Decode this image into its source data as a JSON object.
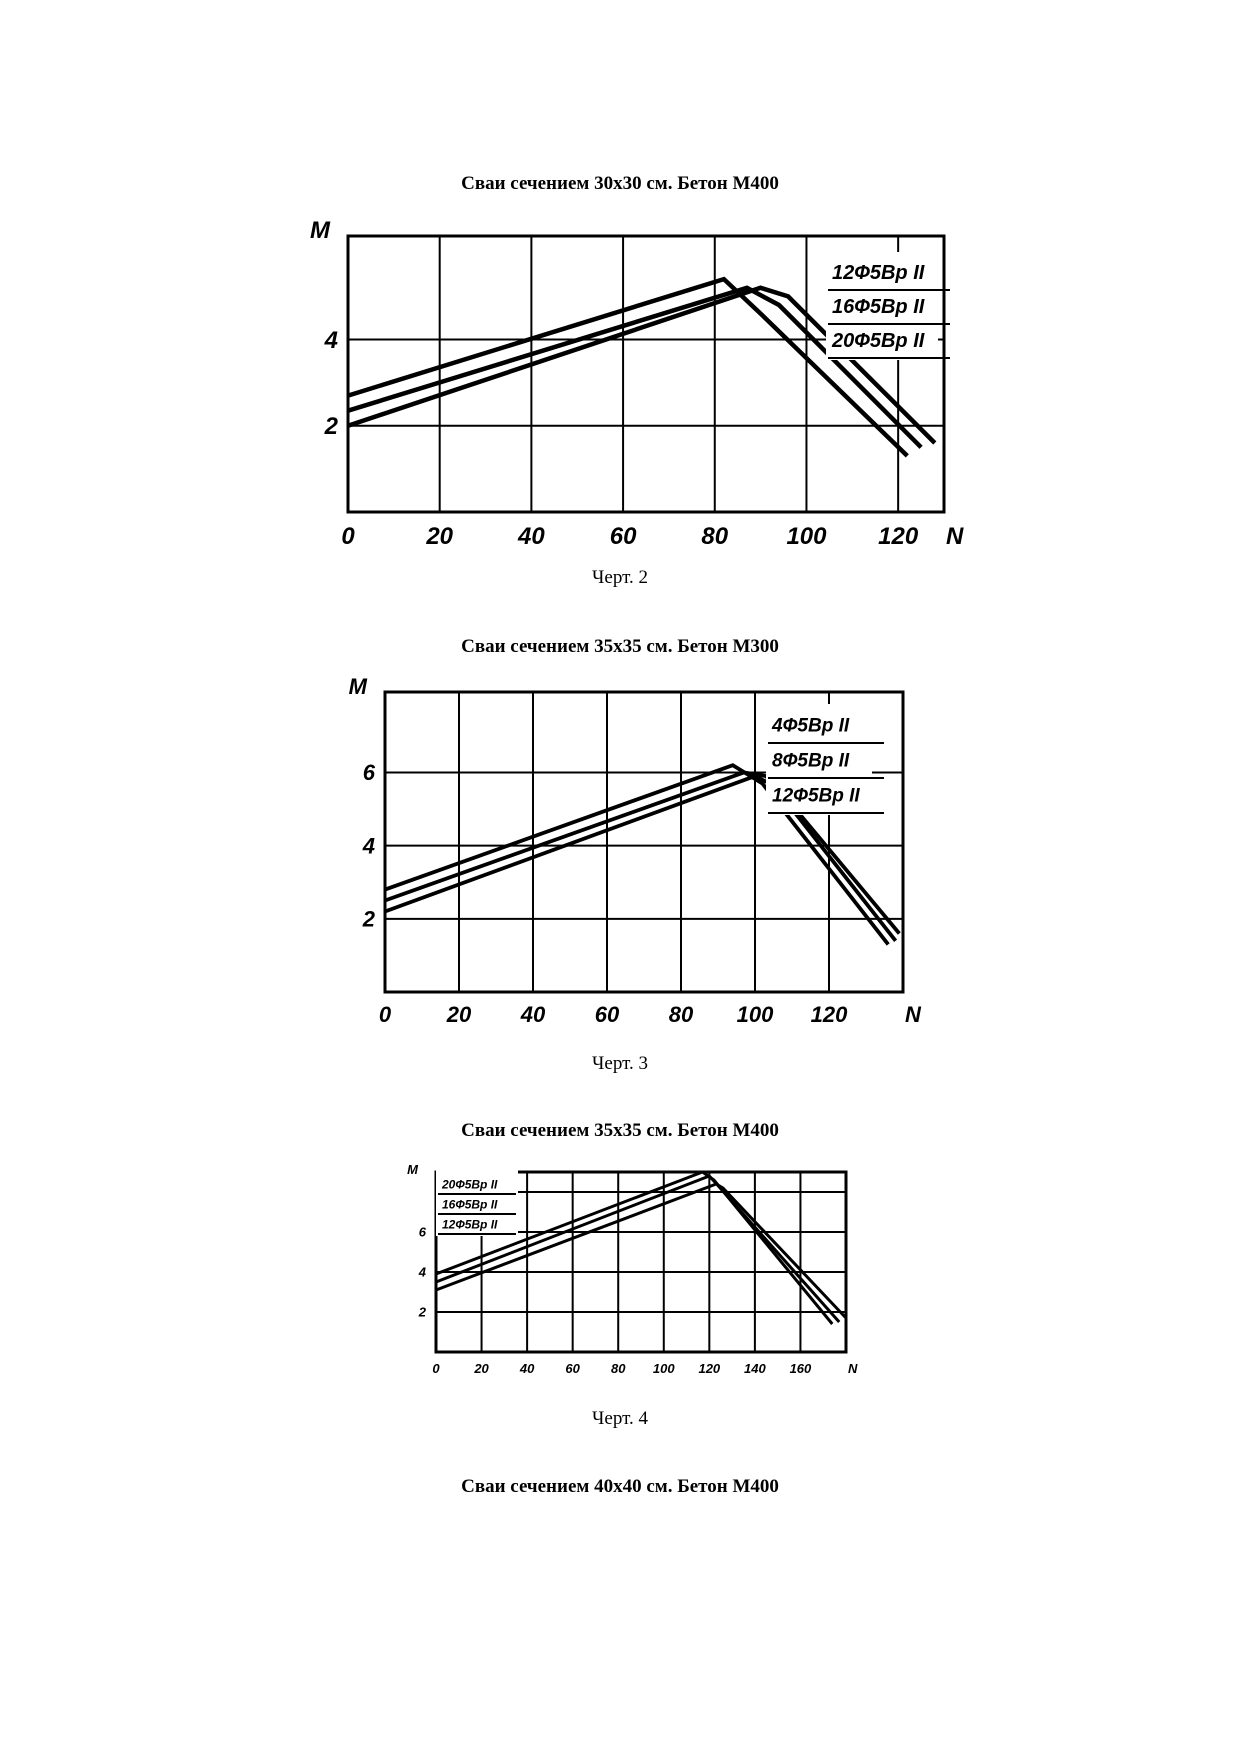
{
  "sections": [
    {
      "heading": "Сваи сечением 30х30 см. Бетон М400",
      "caption": "Черт. 2"
    },
    {
      "heading": "Сваи сечением 35х35 см. Бетон М300",
      "caption": "Черт. 3"
    },
    {
      "heading": "Сваи сечением 35х35 см. Бетон М400",
      "caption": "Черт. 4"
    },
    {
      "heading": "Сваи сечением 40х40 см. Бетон М400"
    }
  ],
  "chart_data": [
    {
      "type": "line",
      "xlabel": "N",
      "ylabel": "M",
      "xlim": [
        0,
        130
      ],
      "ylim": [
        0,
        6.4
      ],
      "x_ticks": [
        "0",
        "20",
        "40",
        "60",
        "80",
        "100",
        "120"
      ],
      "y_ticks": [
        "2",
        "4"
      ],
      "legend_position": "top-right",
      "grid": true,
      "series": [
        {
          "name": "12Ф5Вр II",
          "points": [
            [
              0,
              2.7
            ],
            [
              82,
              5.4
            ],
            [
              90,
              4.6
            ],
            [
              122,
              1.3
            ]
          ]
        },
        {
          "name": "16Ф5Вр II",
          "points": [
            [
              0,
              2.35
            ],
            [
              87,
              5.2
            ],
            [
              94,
              4.8
            ],
            [
              125,
              1.5
            ]
          ]
        },
        {
          "name": "20Ф5Вр II",
          "points": [
            [
              0,
              2.0
            ],
            [
              90,
              5.2
            ],
            [
              96,
              5.0
            ],
            [
              128,
              1.6
            ]
          ]
        }
      ]
    },
    {
      "type": "line",
      "xlabel": "N",
      "ylabel": "M",
      "xlim": [
        0,
        140
      ],
      "ylim": [
        0,
        8.2
      ],
      "x_ticks": [
        "0",
        "20",
        "40",
        "60",
        "80",
        "100",
        "120"
      ],
      "y_ticks": [
        "2",
        "4",
        "6"
      ],
      "legend_position": "top-right",
      "grid": true,
      "series": [
        {
          "name": "4Ф5Вр II",
          "points": [
            [
              0,
              2.8
            ],
            [
              94,
              6.2
            ],
            [
              102,
              5.7
            ],
            [
              136,
              1.3
            ]
          ]
        },
        {
          "name": "8Ф5Вр II",
          "points": [
            [
              0,
              2.5
            ],
            [
              97,
              6.0
            ],
            [
              103,
              5.9
            ],
            [
              138,
              1.4
            ]
          ]
        },
        {
          "name": "12Ф5Вр II",
          "points": [
            [
              0,
              2.2
            ],
            [
              100,
              5.9
            ],
            [
              106,
              5.6
            ],
            [
              139,
              1.6
            ]
          ]
        }
      ]
    },
    {
      "type": "line",
      "xlabel": "N",
      "ylabel": "M",
      "xlim": [
        0,
        180
      ],
      "ylim": [
        0,
        9.0
      ],
      "x_ticks": [
        "0",
        "20",
        "40",
        "60",
        "80",
        "100",
        "120",
        "140",
        "160"
      ],
      "y_ticks": [
        "2",
        "4",
        "6"
      ],
      "legend_position": "top-left",
      "grid": true,
      "series": [
        {
          "name": "20Ф5Вр II",
          "points": [
            [
              0,
              3.9
            ],
            [
              117,
              9.0
            ],
            [
              122,
              8.6
            ],
            [
              174,
              1.4
            ]
          ]
        },
        {
          "name": "16Ф5Вр II",
          "points": [
            [
              0,
              3.5
            ],
            [
              120,
              8.8
            ],
            [
              124,
              8.3
            ],
            [
              177,
              1.5
            ]
          ]
        },
        {
          "name": "12Ф5Вр II",
          "points": [
            [
              0,
              3.1
            ],
            [
              123,
              8.4
            ],
            [
              126,
              8.2
            ],
            [
              180,
              1.7
            ]
          ]
        }
      ]
    }
  ]
}
